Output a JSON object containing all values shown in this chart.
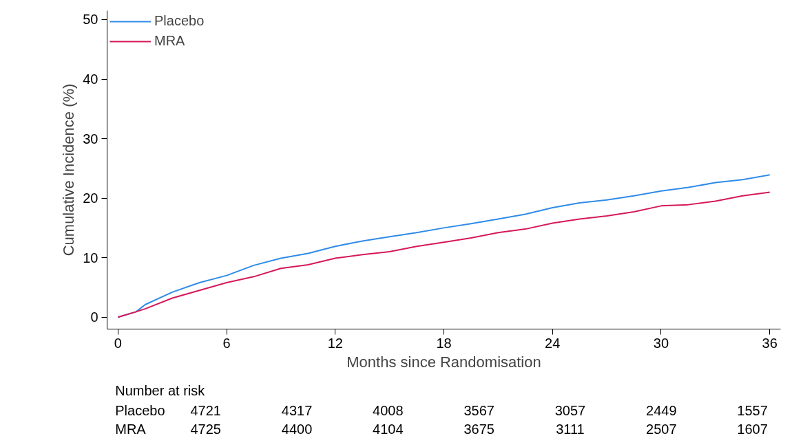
{
  "chart_data": {
    "type": "line",
    "xlabel": "Months since Randomisation",
    "ylabel": "Cumulative Incidence (%)",
    "x": [
      0,
      1,
      1.5,
      3,
      4.5,
      6,
      7.5,
      9,
      10.5,
      12,
      13.5,
      15,
      16.5,
      18,
      19.5,
      21,
      22.5,
      24,
      25.5,
      27,
      28.5,
      30,
      31.5,
      33,
      34.5,
      36
    ],
    "series": [
      {
        "name": "Placebo",
        "color": "#2f8be8",
        "values": [
          0,
          0.9,
          2.1,
          4.2,
          5.8,
          7.0,
          8.7,
          9.9,
          10.7,
          11.9,
          12.8,
          13.5,
          14.2,
          15.0,
          15.7,
          16.5,
          17.3,
          18.4,
          19.2,
          19.7,
          20.4,
          21.2,
          21.8,
          22.6,
          23.1,
          23.9
        ]
      },
      {
        "name": "MRA",
        "color": "#d6185a",
        "values": [
          0,
          0.9,
          1.4,
          3.2,
          4.5,
          5.8,
          6.8,
          8.2,
          8.8,
          9.9,
          10.5,
          11.0,
          11.9,
          12.6,
          13.3,
          14.2,
          14.8,
          15.8,
          16.5,
          17.0,
          17.7,
          18.7,
          18.9,
          19.5,
          20.4,
          21.0
        ]
      }
    ],
    "xlim": [
      -0.6,
      36.6
    ],
    "ylim": [
      -2,
      51.5
    ],
    "xticks": [
      0,
      6,
      12,
      18,
      24,
      30,
      36
    ],
    "yticks": [
      0,
      10,
      20,
      30,
      40,
      50
    ],
    "grid": false,
    "legend": "top left",
    "marker": "none",
    "line_style": "solid",
    "annotations": [
      "Number at risk",
      "Placebo",
      "4721",
      "4317",
      "4008",
      "3567",
      "3057",
      "2449",
      "1557",
      "MRA",
      "4725",
      "4400",
      "4104",
      "3675",
      "3111",
      "2507",
      "1607"
    ]
  }
}
